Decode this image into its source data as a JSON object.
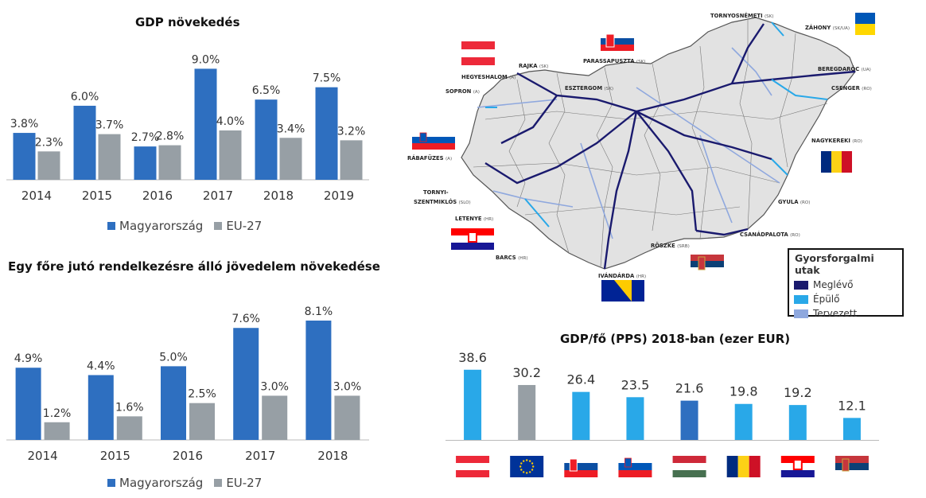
{
  "colors": {
    "hungary": "#2E6FC0",
    "eu": "#979FA5",
    "existing": "#1A1A6E",
    "building": "#29A8E8",
    "planned": "#8FA8DE",
    "mapfill": "#E2E2E2"
  },
  "chart1": {
    "title": "GDP növekedés",
    "chart_data": {
      "type": "bar",
      "title": "GDP növekedés",
      "categories": [
        "2014",
        "2015",
        "2016",
        "2017",
        "2018",
        "2019"
      ],
      "series": [
        {
          "name": "Magyarország",
          "values": [
            3.8,
            6.0,
            2.7,
            9.0,
            6.5,
            7.5
          ],
          "labels": [
            "3.8%",
            "6.0%",
            "2.7%",
            "9.0%",
            "6.5%",
            "7.5%"
          ]
        },
        {
          "name": "EU-27",
          "values": [
            2.3,
            3.7,
            2.8,
            4.0,
            3.4,
            3.2
          ],
          "labels": [
            "2.3%",
            "3.7%",
            "2.8%",
            "4.0%",
            "3.4%",
            "3.2%"
          ]
        }
      ],
      "ylim": [
        0,
        9.8
      ],
      "legend": "bottom"
    }
  },
  "chart2": {
    "title": "Egy főre jutó rendelkezésre álló jövedelem növekedése",
    "chart_data": {
      "type": "bar",
      "title": "Egy főre jutó rendelkezésre álló jövedelem növekedése",
      "categories": [
        "2014",
        "2015",
        "2016",
        "2017",
        "2018"
      ],
      "series": [
        {
          "name": "Magyarország",
          "values": [
            4.9,
            4.4,
            5.0,
            7.6,
            8.1
          ],
          "labels": [
            "4.9%",
            "4.4%",
            "5.0%",
            "7.6%",
            "8.1%"
          ]
        },
        {
          "name": "EU-27",
          "values": [
            1.2,
            1.6,
            2.5,
            3.0,
            3.0
          ],
          "labels": [
            "1.2%",
            "1.6%",
            "2.5%",
            "3.0%",
            "3.0%"
          ]
        }
      ],
      "ylim": [
        0,
        8.8
      ],
      "legend": "bottom"
    }
  },
  "chart3": {
    "title": "GDP/fő (PPS) 2018-ban (ezer EUR)",
    "chart_data": {
      "type": "bar",
      "title": "GDP/fő (PPS) 2018-ban (ezer EUR)",
      "categories": [
        "austria-flag",
        "eu-flag",
        "slovakia-flag",
        "slovenia-flag",
        "hungary-flag",
        "romania-flag",
        "croatia-flag",
        "serbia-flag"
      ],
      "values": [
        38.6,
        30.2,
        26.4,
        23.5,
        21.6,
        19.8,
        19.2,
        12.1
      ],
      "labels": [
        "38.6",
        "30.2",
        "26.4",
        "23.5",
        "21.6",
        "19.8",
        "19.2",
        "12.1"
      ],
      "bar_colors": [
        "#29A8E8",
        "#979FA5",
        "#29A8E8",
        "#29A8E8",
        "#2E6FC0",
        "#29A8E8",
        "#29A8E8",
        "#29A8E8"
      ],
      "ylim": [
        0,
        42
      ]
    }
  },
  "map": {
    "legend_title": "Gyorsforgalmi utak",
    "legend_items": [
      {
        "label": "Meglévő",
        "color": "#1A1A6E"
      },
      {
        "label": "Épülő",
        "color": "#29A8E8"
      },
      {
        "label": "Tervezett",
        "color": "#8FA8DE"
      }
    ],
    "crossings": [
      {
        "name": "TORNYOSNÉMETI",
        "country": "(SK)"
      },
      {
        "name": "ZÁHONY",
        "country": "(SK/UA)"
      },
      {
        "name": "BEREGDARÓC",
        "country": "(UA)"
      },
      {
        "name": "CSENGER",
        "country": "(RO)"
      },
      {
        "name": "NAGYKEREKI",
        "country": "(RO)"
      },
      {
        "name": "GYULA",
        "country": "(RO)"
      },
      {
        "name": "CSANÁDPALOTA",
        "country": "(RO)"
      },
      {
        "name": "RÖSZKE",
        "country": "(SRB)"
      },
      {
        "name": "IVÁNDÁRDA",
        "country": "(HR)"
      },
      {
        "name": "BARCS",
        "country": "(HR)"
      },
      {
        "name": "LETENYE",
        "country": "(HR)"
      },
      {
        "name": "TORNYI-",
        "country": ""
      },
      {
        "name": "SZENTMIKLÓS",
        "country": "(SLO)"
      },
      {
        "name": "RÁBAFÜZES",
        "country": "(A)"
      },
      {
        "name": "SOPRON",
        "country": "(A)"
      },
      {
        "name": "HEGYESHALOM",
        "country": "(A)"
      },
      {
        "name": "RAJKA",
        "country": "(SK)"
      },
      {
        "name": "PARASSAPUSZTA",
        "country": "(SK)"
      },
      {
        "name": "ESZTERGOM",
        "country": "(SK)"
      }
    ]
  }
}
